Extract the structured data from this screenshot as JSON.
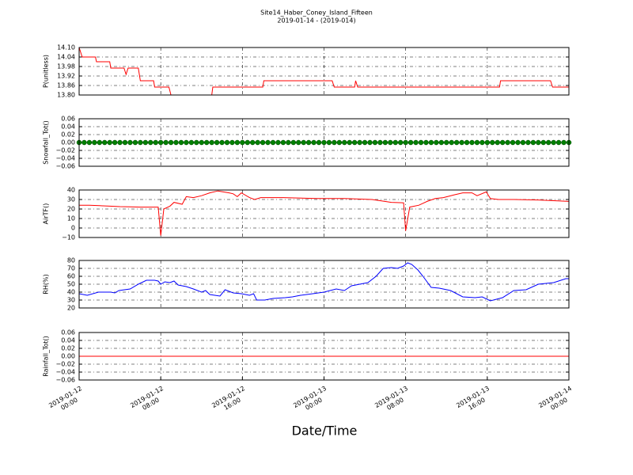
{
  "chart_data": [
    {
      "type": "line",
      "title": "Site14_Haber_Coney_Island_Fifteen",
      "subtitle": "2019-01-14 - (2019-014)",
      "ylabel": "P(unitless)",
      "color": "red",
      "x": [
        0,
        0.3,
        1.6,
        1.7,
        3.0,
        3.1,
        4.4,
        4.6,
        4.8,
        5.8,
        6.0,
        7.3,
        7.4,
        8.8,
        9.0,
        13.0,
        13.1,
        18.0,
        18.1,
        24.8,
        25.0,
        27.0,
        27.1,
        27.3,
        41.2,
        41.3,
        46.2,
        46.4,
        48
      ],
      "values": [
        14.1,
        14.04,
        14.04,
        14.01,
        14.01,
        13.97,
        13.97,
        13.93,
        13.97,
        13.97,
        13.89,
        13.89,
        13.85,
        13.85,
        13.8,
        13.8,
        13.85,
        13.85,
        13.89,
        13.89,
        13.85,
        13.85,
        13.89,
        13.85,
        13.85,
        13.89,
        13.89,
        13.85,
        13.85
      ],
      "ylim": [
        13.8,
        14.1
      ],
      "yticks": [
        {
          "value": 14.1,
          "label": "14.10"
        },
        14.04,
        13.98,
        13.92,
        13.86,
        {
          "value": 13.8,
          "label": "13.80"
        }
      ],
      "xlim": [
        0,
        48
      ],
      "grid": true
    },
    {
      "type": "scatter",
      "ylabel": "Snowfall_Tot()",
      "color": "green",
      "x": [
        0,
        0.5,
        1,
        1.5,
        2,
        2.5,
        3,
        3.5,
        4,
        4.5,
        5,
        5.5,
        6,
        6.5,
        7,
        7.5,
        8,
        8.5,
        9,
        9.5,
        10,
        10.5,
        11,
        11.5,
        12,
        12.5,
        13,
        13.5,
        14,
        14.5,
        15,
        15.5,
        16,
        16.5,
        17,
        17.5,
        18,
        18.5,
        19,
        19.5,
        20,
        20.5,
        21,
        21.5,
        22,
        22.5,
        23,
        23.5,
        24,
        24.5,
        25,
        25.5,
        26,
        26.5,
        27,
        27.5,
        28,
        28.5,
        29,
        29.5,
        30,
        30.5,
        31,
        31.5,
        32,
        32.5,
        33,
        33.5,
        34,
        34.5,
        35,
        35.5,
        36,
        36.5,
        37,
        37.5,
        38,
        38.5,
        39,
        39.5,
        40,
        40.5,
        41,
        41.5,
        42,
        42.5,
        43,
        43.5,
        44,
        44.5,
        45,
        45.5,
        46,
        46.5,
        47,
        47.5,
        48
      ],
      "values": [
        0,
        0,
        0,
        0,
        0,
        0,
        0,
        0,
        0,
        0,
        0,
        0,
        0,
        0,
        0,
        0,
        0,
        0,
        0,
        0,
        0,
        0,
        0,
        0,
        0,
        0,
        0,
        0,
        0,
        0,
        0,
        0,
        0,
        0,
        0,
        0,
        0,
        0,
        0,
        0,
        0,
        0,
        0,
        0,
        0,
        0,
        0,
        0,
        0,
        0,
        0,
        0,
        0,
        0,
        0,
        0,
        0,
        0,
        0,
        0,
        0,
        0,
        0,
        0,
        0,
        0,
        0,
        0,
        0,
        0,
        0,
        0,
        0,
        0,
        0,
        0,
        0,
        0,
        0,
        0,
        0,
        0,
        0,
        0,
        0,
        0,
        0,
        0,
        0,
        0,
        0,
        0,
        0,
        0,
        0,
        0,
        0
      ],
      "ylim": [
        -0.06,
        0.06
      ],
      "yticks": [
        0.06,
        0.04,
        0.02,
        {
          "value": 0,
          "label": "0.00"
        },
        {
          "value": -0.02,
          "label": "−0.02"
        },
        {
          "value": -0.04,
          "label": "−0.04"
        },
        {
          "value": -0.06,
          "label": "−0.06"
        }
      ],
      "xlim": [
        0,
        48
      ],
      "grid": true
    },
    {
      "type": "line",
      "ylabel": "AirTF()",
      "color": "red",
      "x": [
        0,
        1,
        2,
        3,
        4,
        5,
        6,
        7,
        7.75,
        8,
        8.3,
        8.9,
        9.3,
        10.1,
        10.5,
        11.2,
        12,
        12.8,
        13.6,
        14.7,
        15.1,
        15.5,
        15.9,
        16.7,
        17.2,
        17.8,
        20,
        23.3,
        26,
        28.7,
        30.6,
        31.8,
        32,
        32.4,
        33.3,
        34.1,
        34.9,
        35.7,
        36.8,
        37.6,
        38.5,
        39,
        39.9,
        40.3,
        41.1,
        41.9,
        42.6,
        45,
        48
      ],
      "values": [
        24,
        24,
        23.5,
        23,
        22.5,
        22.3,
        22,
        22,
        22,
        -8,
        20,
        23,
        27,
        25,
        33,
        32,
        34,
        37,
        39,
        37,
        36,
        33,
        37,
        32,
        30,
        32,
        32,
        31,
        31,
        30,
        27,
        26.5,
        -3,
        22,
        24,
        28,
        31,
        32,
        35,
        37,
        37,
        34,
        38,
        31,
        30,
        30,
        30,
        29.5,
        28
      ],
      "ylim": [
        -10,
        40
      ],
      "yticks": [
        40,
        30,
        20,
        10,
        0,
        {
          "value": -10,
          "label": "−10"
        }
      ],
      "xlim": [
        0,
        48
      ],
      "grid": true
    },
    {
      "type": "line",
      "ylabel": "RH(%)",
      "color": "blue",
      "x": [
        0,
        0.8,
        1.9,
        3.1,
        3.5,
        3.9,
        5,
        5.8,
        6.6,
        7.4,
        7.75,
        8,
        8.4,
        8.9,
        9.3,
        9.7,
        10.5,
        11.2,
        12,
        12.4,
        12.8,
        13.8,
        14.3,
        15.1,
        15.9,
        16.7,
        17.1,
        17.4,
        18.2,
        19,
        20.2,
        20.9,
        21.7,
        22.9,
        24,
        25.2,
        26,
        26.7,
        27.5,
        28.3,
        29.1,
        29.8,
        30.6,
        31.2,
        31.8,
        32.2,
        32.6,
        33.2,
        33.7,
        34.5,
        35.3,
        36.4,
        37.6,
        38.8,
        39.5,
        40.3,
        41.5,
        42.6,
        43.8,
        45,
        46.5,
        47.7,
        48
      ],
      "values": [
        38,
        36,
        40,
        40,
        39,
        42,
        44,
        50,
        55,
        55,
        54,
        50,
        53,
        52,
        54,
        49,
        47,
        44,
        40,
        42,
        37,
        35,
        43,
        39,
        38,
        36,
        38,
        30,
        30,
        32,
        33,
        34,
        36,
        38,
        40,
        44,
        42,
        48,
        50,
        52,
        60,
        70,
        71,
        70,
        73,
        77,
        75,
        68,
        60,
        46,
        45,
        42,
        34,
        33,
        34,
        29,
        33,
        42,
        43,
        50,
        52,
        57,
        57
      ],
      "ylim": [
        20,
        80
      ],
      "yticks": [
        80,
        70,
        60,
        50,
        40,
        30,
        20
      ],
      "xlim": [
        0,
        48
      ],
      "grid": true
    },
    {
      "type": "line",
      "ylabel": "Rainfall_Tot()",
      "color": "red",
      "x_label": "Date/Time",
      "x": [
        0,
        2,
        4,
        6,
        8,
        10,
        12,
        14,
        16,
        18,
        20,
        22,
        24,
        26,
        28,
        30,
        32,
        34,
        36,
        38,
        40,
        42,
        44,
        46,
        48
      ],
      "values": [
        0,
        0,
        0,
        0,
        0,
        0,
        0,
        0,
        0,
        0,
        0,
        0,
        0,
        0,
        0,
        0,
        0,
        0,
        0,
        0,
        0,
        0,
        0,
        0,
        0
      ],
      "ylim": [
        -0.06,
        0.06
      ],
      "yticks": [
        0.06,
        0.04,
        0.02,
        {
          "value": 0,
          "label": "0.00"
        },
        {
          "value": -0.02,
          "label": "−0.02"
        },
        {
          "value": -0.04,
          "label": "−0.04"
        },
        {
          "value": -0.06,
          "label": "−0.06"
        }
      ],
      "xlim": [
        0,
        48
      ],
      "xticks": [
        {
          "value": 0,
          "label": "2019-01-12\n00:00"
        },
        {
          "value": 8,
          "label": "2019-01-12\n08:00"
        },
        {
          "value": 16,
          "label": "2019-01-12\n16:00"
        },
        {
          "value": 24,
          "label": "2019-01-13\n00:00"
        },
        {
          "value": 32,
          "label": "2019-01-13\n08:00"
        },
        {
          "value": 40,
          "label": "2019-01-13\n16:00"
        },
        {
          "value": 48,
          "label": "2019-01-14\n00:00"
        }
      ],
      "grid": true
    }
  ]
}
